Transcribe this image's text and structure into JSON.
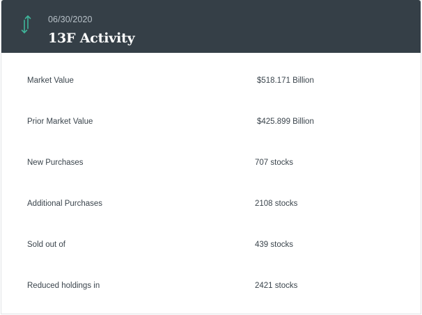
{
  "header": {
    "icon": "up-down-arrows-icon",
    "icon_color": "#3fb59a",
    "background_color": "#353f47",
    "date": "06/30/2020",
    "title": "13F Activity"
  },
  "rows": [
    {
      "label": "Market Value",
      "value": "$518.171 Billion"
    },
    {
      "label": "Prior Market Value",
      "value": "$425.899 Billion"
    },
    {
      "label": "New Purchases",
      "value": "707 stocks"
    },
    {
      "label": "Additional Purchases",
      "value": "2108 stocks"
    },
    {
      "label": "Sold out of",
      "value": "439 stocks"
    },
    {
      "label": "Reduced holdings in",
      "value": "2421 stocks"
    }
  ]
}
